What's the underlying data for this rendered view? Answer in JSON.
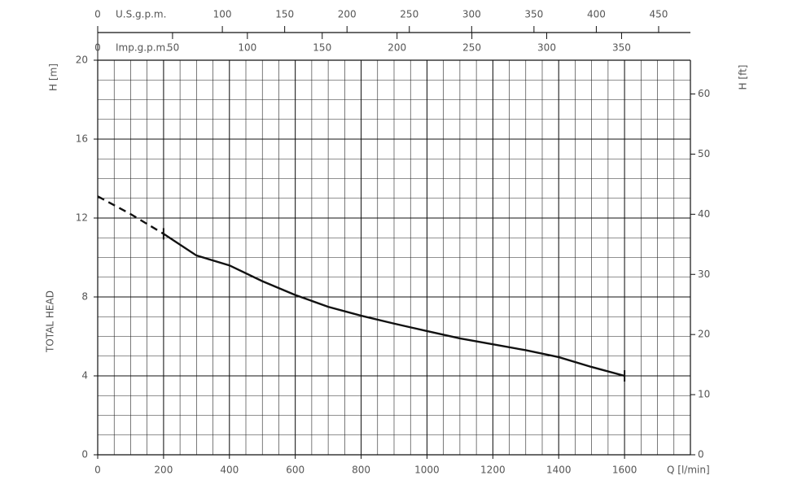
{
  "chart_data": {
    "type": "line",
    "y_label": "H [m]",
    "y_title": "TOTAL HEAD",
    "y2_label": "H [ft]",
    "x_label": "Q [l/min]",
    "x": [
      0,
      100,
      200,
      300,
      400,
      500,
      600,
      700,
      800,
      900,
      1000,
      1100,
      1200,
      1300,
      1400,
      1500,
      1600
    ],
    "series": [
      {
        "color": "#111111",
        "dashed": true,
        "values": [
          13.1,
          12.2,
          11.2,
          null,
          null,
          null,
          null,
          null,
          null,
          null,
          null,
          null,
          null,
          null,
          null,
          null,
          null
        ]
      },
      {
        "color": "#111111",
        "dashed": false,
        "values": [
          null,
          null,
          11.2,
          10.1,
          9.6,
          8.8,
          8.1,
          7.5,
          7.05,
          6.65,
          6.27,
          5.9,
          5.6,
          5.3,
          4.95,
          4.45,
          4.0
        ]
      }
    ],
    "xlim": [
      0,
      1800
    ],
    "xticks": [
      0,
      200,
      400,
      600,
      800,
      1000,
      1200,
      1400,
      1600
    ],
    "ylim": [
      0,
      20
    ],
    "yticks": [
      0,
      4,
      8,
      12,
      16,
      20
    ],
    "y2lim": [
      0,
      65.617
    ],
    "y2ticks": [
      0,
      10,
      20,
      30,
      40,
      50,
      60
    ],
    "grid": true,
    "top_axes": [
      {
        "label": "U.S.g.p.m.",
        "lim": [
          0,
          475.5
        ],
        "ticks": [
          0,
          100,
          150,
          200,
          250,
          300,
          350,
          400,
          450
        ]
      },
      {
        "label": "Imp.g.p.m.",
        "lim": [
          0,
          396
        ],
        "ticks": [
          0,
          50,
          100,
          150,
          200,
          250,
          300,
          350
        ]
      }
    ]
  }
}
